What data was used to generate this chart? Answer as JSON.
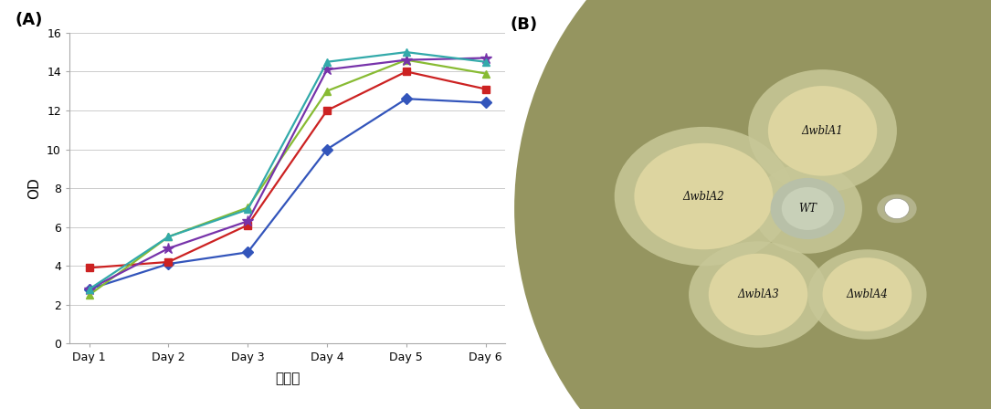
{
  "days": [
    "Day 1",
    "Day 2",
    "Day 3",
    "Day 4",
    "Day 5",
    "Day 6"
  ],
  "WT": [
    2.8,
    4.1,
    4.7,
    10.0,
    12.6,
    12.4
  ],
  "wblA1": [
    3.9,
    4.2,
    6.1,
    12.0,
    14.0,
    13.1
  ],
  "wblA2": [
    2.5,
    5.5,
    7.0,
    13.0,
    14.6,
    13.9
  ],
  "wblA3": [
    2.8,
    4.9,
    6.3,
    14.1,
    14.6,
    14.7
  ],
  "wblA4": [
    2.8,
    5.5,
    6.9,
    14.5,
    15.0,
    14.5
  ],
  "colors": {
    "WT": "#3355bb",
    "wblA1": "#cc2222",
    "wblA2": "#88bb33",
    "wblA3": "#7733aa",
    "wblA4": "#33aaaa"
  },
  "markers": {
    "WT": "D",
    "wblA1": "s",
    "wblA2": "^",
    "wblA3": "*",
    "wblA4": "^"
  },
  "legend_labels": [
    "WT",
    "ΔwblA 1",
    "ΔwblA 2",
    "ΔwblA 3",
    "ΔwblA 4"
  ],
  "ylabel": "OD",
  "xlabel": "배양일",
  "ylim": [
    0,
    16
  ],
  "yticks": [
    0,
    2,
    4,
    6,
    8,
    10,
    12,
    14,
    16
  ],
  "panel_A_label": "(A)",
  "panel_B_label": "(B)",
  "dish_color_outer": "#6b6b3a",
  "dish_color_inner": "#858555",
  "dish_color_surface": "#9a9a60",
  "colony_cream": "#e8e0b0",
  "colony_halo": "#c8c898",
  "wt_colony": "#c0c8b0"
}
